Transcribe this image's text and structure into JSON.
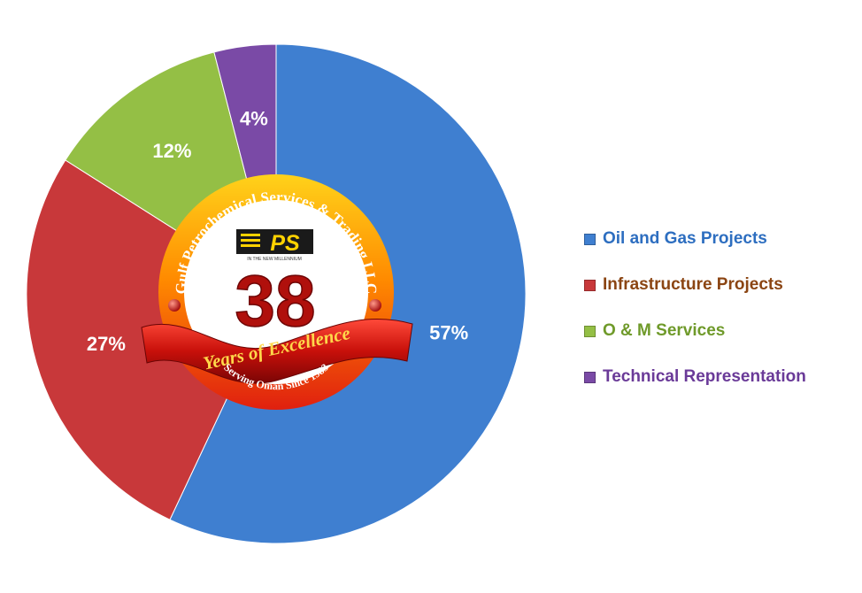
{
  "chart_data": {
    "type": "pie",
    "variant": "doughnut",
    "title": "",
    "categories": [
      "Oil and Gas Projects",
      "Infrastructure Projects",
      "O & M Services",
      "Technical Representation"
    ],
    "values": [
      57,
      27,
      12,
      4
    ],
    "unit": "%",
    "data_labels": [
      "57%",
      "27%",
      "12%",
      "4%"
    ],
    "colors": [
      "#3f7fd0",
      "#c8383a",
      "#94bf45",
      "#7a4aa6"
    ],
    "legend_text_colors": [
      "#2d6ec0",
      "#8b4513",
      "#6f9a2a",
      "#6a3a98"
    ],
    "legend_position": "right"
  },
  "emblem": {
    "arc_text": "Gulf Petrochemical Services & Trading LLC",
    "logo_text": "PS",
    "logo_tagline": "IN THE NEW MILLENNIUM",
    "number": "38",
    "ribbon_text": "Years of Excellence",
    "bottom_text": "Serving Oman Since 1983"
  }
}
